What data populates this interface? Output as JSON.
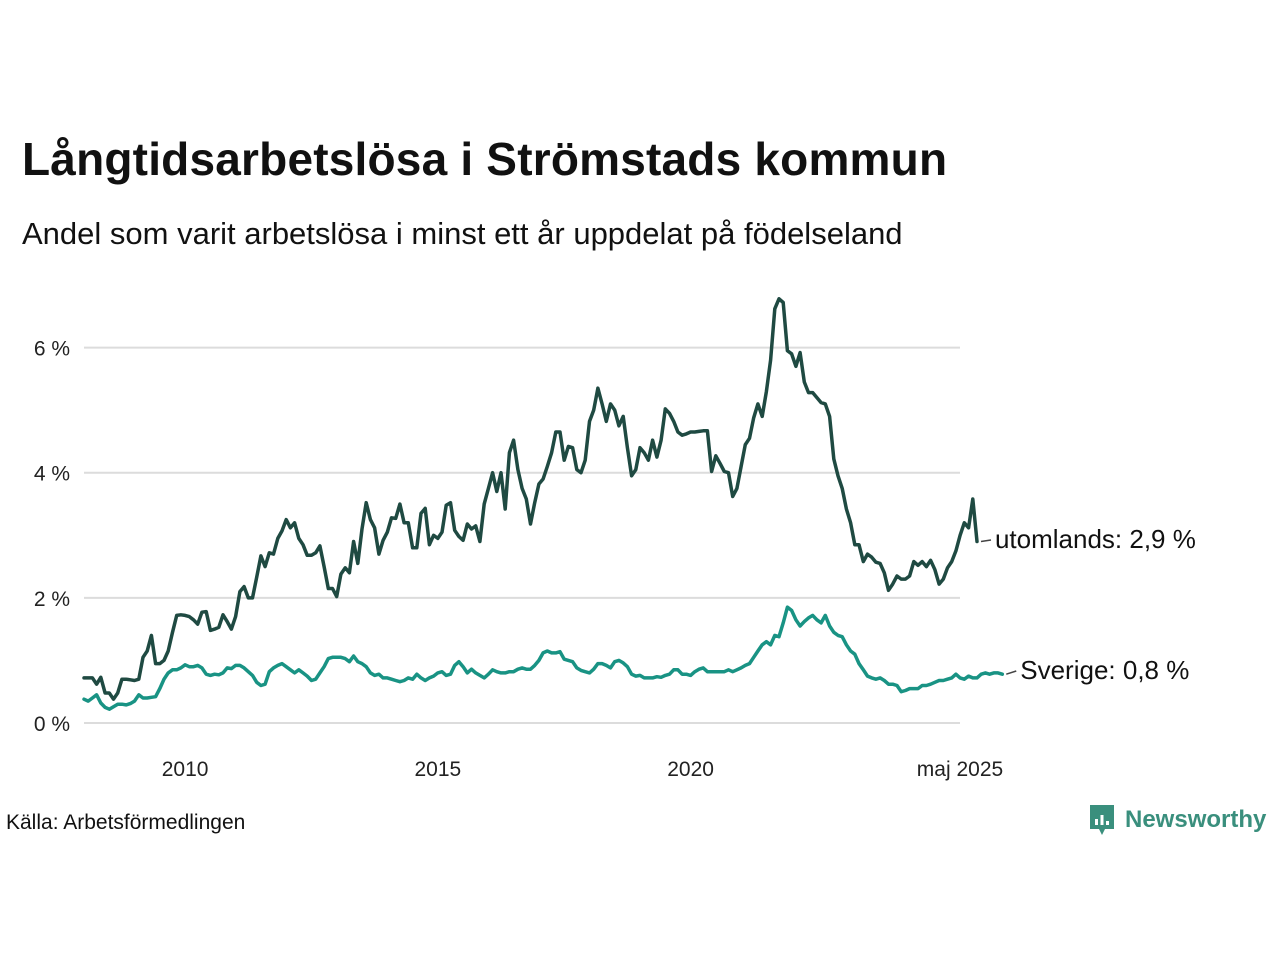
{
  "title": "Långtidsarbetslösa i Strömstads kommun",
  "subtitle": "Andel som varit arbetslösa i minst ett år uppdelat på födelseland",
  "source": "Källa: Arbetsförmedlingen",
  "brand": {
    "name": "Newsworthy",
    "icon": "newsworthy-logo-icon",
    "color": "#3a8f7d"
  },
  "chart_data": {
    "type": "line",
    "x_start": 2008.0,
    "x_step": 0.08333,
    "xlim": [
      2008.0,
      2025.33
    ],
    "ylim": [
      0,
      7
    ],
    "grid": true,
    "y_ticks": [
      {
        "value": 0,
        "label": "0 %"
      },
      {
        "value": 2,
        "label": "2 %"
      },
      {
        "value": 4,
        "label": "4 %"
      },
      {
        "value": 6,
        "label": "6 %"
      }
    ],
    "x_ticks": [
      {
        "value": 2010,
        "label": "2010"
      },
      {
        "value": 2015,
        "label": "2015"
      },
      {
        "value": 2020,
        "label": "2020"
      },
      {
        "value": 2025.33,
        "label": "maj 2025"
      }
    ],
    "series": [
      {
        "name": "utomlands",
        "end_label": "utomlands: 2,9 %",
        "color": "#1f4a42",
        "values": [
          0.72,
          0.72,
          0.72,
          0.62,
          0.73,
          0.48,
          0.48,
          0.38,
          0.48,
          0.7,
          0.7,
          0.69,
          0.68,
          0.7,
          1.05,
          1.15,
          1.4,
          0.95,
          0.95,
          1.0,
          1.15,
          1.45,
          1.72,
          1.73,
          1.72,
          1.7,
          1.65,
          1.58,
          1.77,
          1.78,
          1.48,
          1.5,
          1.53,
          1.73,
          1.62,
          1.5,
          1.7,
          2.1,
          2.18,
          2.0,
          2.0,
          2.33,
          2.67,
          2.5,
          2.72,
          2.7,
          2.95,
          3.07,
          3.25,
          3.12,
          3.2,
          2.95,
          2.85,
          2.68,
          2.68,
          2.72,
          2.83,
          2.5,
          2.15,
          2.15,
          2.02,
          2.38,
          2.48,
          2.4,
          2.9,
          2.55,
          3.1,
          3.52,
          3.25,
          3.12,
          2.7,
          2.92,
          3.05,
          3.28,
          3.27,
          3.5,
          3.2,
          3.2,
          2.8,
          2.8,
          3.35,
          3.43,
          2.85,
          3.0,
          2.95,
          3.05,
          3.48,
          3.52,
          3.08,
          2.98,
          2.92,
          3.18,
          3.1,
          3.15,
          2.9,
          3.5,
          3.75,
          4.0,
          3.7,
          4.0,
          3.42,
          4.32,
          4.52,
          4.05,
          3.75,
          3.58,
          3.18,
          3.52,
          3.82,
          3.9,
          4.1,
          4.32,
          4.65,
          4.65,
          4.2,
          4.42,
          4.4,
          4.05,
          4.0,
          4.2,
          4.82,
          5.0,
          5.35,
          5.1,
          4.82,
          5.1,
          5.0,
          4.75,
          4.9,
          4.4,
          3.95,
          4.05,
          4.4,
          4.32,
          4.2,
          4.52,
          4.25,
          4.52,
          5.02,
          4.95,
          4.82,
          4.65,
          4.6,
          4.62,
          4.65,
          4.65,
          4.66,
          4.67,
          4.67,
          4.02,
          4.27,
          4.15,
          4.02,
          4.0,
          3.62,
          3.75,
          4.1,
          4.45,
          4.55,
          4.88,
          5.1,
          4.9,
          5.3,
          5.8,
          6.62,
          6.78,
          6.72,
          5.95,
          5.9,
          5.7,
          5.92,
          5.45,
          5.28,
          5.28,
          5.2,
          5.12,
          5.1,
          4.9,
          4.22,
          3.95,
          3.75,
          3.42,
          3.2,
          2.85,
          2.85,
          2.58,
          2.7,
          2.65,
          2.57,
          2.55,
          2.4,
          2.12,
          2.22,
          2.35,
          2.3,
          2.3,
          2.35,
          2.58,
          2.52,
          2.58,
          2.5,
          2.6,
          2.45,
          2.22,
          2.3,
          2.48,
          2.58,
          2.75,
          3.0,
          3.2,
          3.12,
          3.58,
          2.9
        ]
      },
      {
        "name": "Sverige",
        "end_label": "Sverige: 0,8 %",
        "color": "#199384",
        "values": [
          0.38,
          0.35,
          0.4,
          0.45,
          0.32,
          0.25,
          0.22,
          0.26,
          0.3,
          0.3,
          0.29,
          0.31,
          0.35,
          0.45,
          0.4,
          0.4,
          0.41,
          0.42,
          0.55,
          0.7,
          0.8,
          0.85,
          0.85,
          0.88,
          0.93,
          0.9,
          0.9,
          0.92,
          0.88,
          0.78,
          0.76,
          0.78,
          0.77,
          0.8,
          0.88,
          0.87,
          0.92,
          0.92,
          0.88,
          0.82,
          0.76,
          0.65,
          0.6,
          0.62,
          0.82,
          0.88,
          0.92,
          0.95,
          0.9,
          0.85,
          0.8,
          0.85,
          0.8,
          0.75,
          0.68,
          0.7,
          0.8,
          0.9,
          1.03,
          1.05,
          1.05,
          1.05,
          1.03,
          0.98,
          1.07,
          0.98,
          0.95,
          0.9,
          0.8,
          0.76,
          0.78,
          0.72,
          0.72,
          0.7,
          0.68,
          0.66,
          0.68,
          0.72,
          0.7,
          0.78,
          0.72,
          0.68,
          0.72,
          0.75,
          0.8,
          0.82,
          0.76,
          0.78,
          0.92,
          0.98,
          0.9,
          0.8,
          0.86,
          0.8,
          0.76,
          0.72,
          0.78,
          0.85,
          0.82,
          0.8,
          0.8,
          0.82,
          0.82,
          0.86,
          0.88,
          0.86,
          0.86,
          0.92,
          1.0,
          1.12,
          1.15,
          1.12,
          1.12,
          1.14,
          1.02,
          1.0,
          0.98,
          0.88,
          0.84,
          0.82,
          0.8,
          0.86,
          0.95,
          0.95,
          0.92,
          0.88,
          0.98,
          1.0,
          0.96,
          0.9,
          0.78,
          0.75,
          0.76,
          0.72,
          0.72,
          0.72,
          0.74,
          0.73,
          0.76,
          0.78,
          0.85,
          0.85,
          0.78,
          0.78,
          0.76,
          0.82,
          0.86,
          0.88,
          0.82,
          0.82,
          0.82,
          0.82,
          0.82,
          0.85,
          0.82,
          0.85,
          0.88,
          0.92,
          0.95,
          1.05,
          1.15,
          1.25,
          1.3,
          1.25,
          1.4,
          1.38,
          1.6,
          1.85,
          1.8,
          1.65,
          1.55,
          1.62,
          1.68,
          1.72,
          1.65,
          1.6,
          1.72,
          1.55,
          1.45,
          1.4,
          1.38,
          1.25,
          1.15,
          1.1,
          0.95,
          0.85,
          0.75,
          0.72,
          0.7,
          0.72,
          0.68,
          0.62,
          0.62,
          0.6,
          0.5,
          0.52,
          0.55,
          0.55,
          0.55,
          0.6,
          0.6,
          0.62,
          0.65,
          0.68,
          0.68,
          0.7,
          0.72,
          0.78,
          0.72,
          0.7,
          0.75,
          0.72,
          0.72,
          0.78,
          0.8,
          0.78,
          0.8,
          0.8,
          0.78
        ]
      }
    ]
  }
}
